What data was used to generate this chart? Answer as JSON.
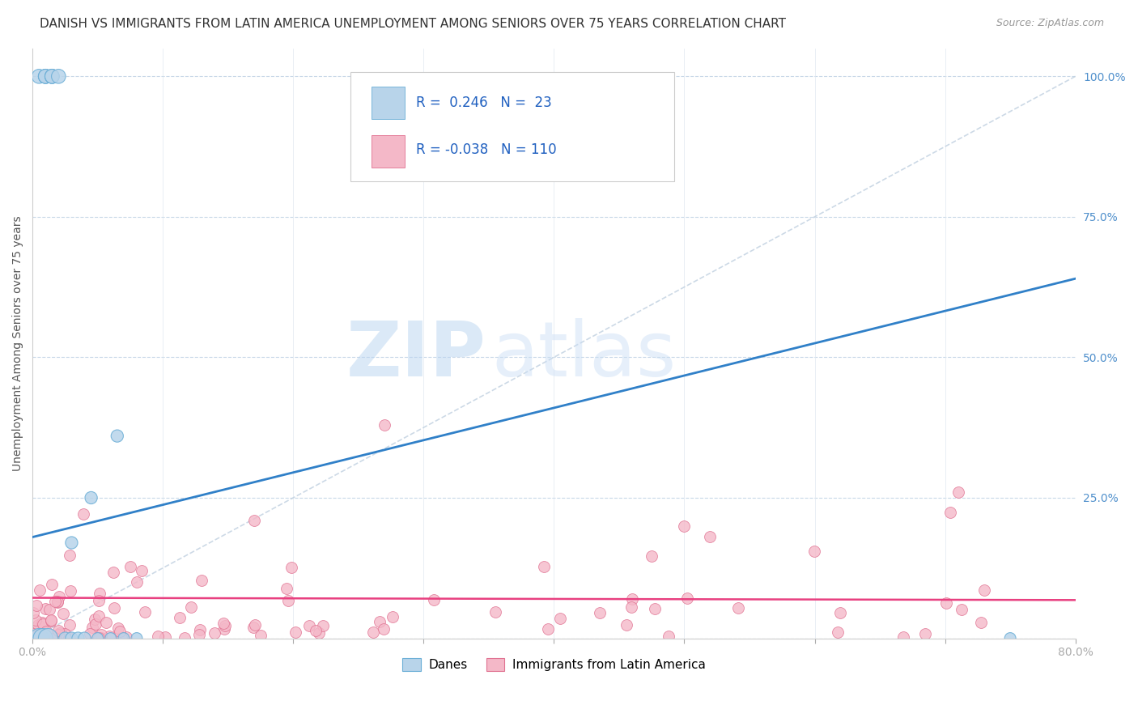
{
  "title": "DANISH VS IMMIGRANTS FROM LATIN AMERICA UNEMPLOYMENT AMONG SENIORS OVER 75 YEARS CORRELATION CHART",
  "source": "Source: ZipAtlas.com",
  "ylabel": "Unemployment Among Seniors over 75 years",
  "xlim": [
    0.0,
    0.8
  ],
  "ylim": [
    0.0,
    1.05
  ],
  "danes_R": 0.246,
  "danes_N": 23,
  "immigrants_R": -0.038,
  "immigrants_N": 110,
  "danes_color": "#b8d4ea",
  "danes_edge_color": "#6aaed6",
  "immigrants_color": "#f4b8c8",
  "immigrants_edge_color": "#e07090",
  "danes_line_color": "#3080c8",
  "immigrants_line_color": "#e84080",
  "reference_line_color": "#c0d0e0",
  "watermark_zip": "ZIP",
  "watermark_atlas": "atlas",
  "legend_danes_label": "Danes",
  "legend_immigrants_label": "Immigrants from Latin America",
  "background_color": "#ffffff",
  "grid_color": "#c8d8e8",
  "danes_x": [
    0.005,
    0.01,
    0.01,
    0.01,
    0.015,
    0.015,
    0.015,
    0.02,
    0.005,
    0.008,
    0.012,
    0.025,
    0.03,
    0.035,
    0.04,
    0.05,
    0.06,
    0.07,
    0.08,
    0.03,
    0.045,
    0.065,
    0.75
  ],
  "danes_y": [
    1.0,
    1.0,
    1.0,
    1.0,
    1.0,
    1.0,
    1.0,
    1.0,
    0.0,
    0.0,
    0.0,
    0.0,
    0.0,
    0.0,
    0.0,
    0.0,
    0.0,
    0.0,
    0.0,
    0.17,
    0.25,
    0.36,
    0.0
  ],
  "danes_sizes": [
    160,
    160,
    160,
    160,
    160,
    160,
    160,
    160,
    300,
    300,
    300,
    120,
    120,
    120,
    120,
    100,
    100,
    100,
    100,
    120,
    120,
    120,
    100
  ],
  "danes_line_x": [
    0.0,
    0.8
  ],
  "danes_line_y": [
    0.18,
    0.64
  ],
  "imm_line_x": [
    0.0,
    0.8
  ],
  "imm_line_y": [
    0.072,
    0.068
  ],
  "ref_line_x": [
    0.0,
    0.8
  ],
  "ref_line_y": [
    0.0,
    1.0
  ]
}
